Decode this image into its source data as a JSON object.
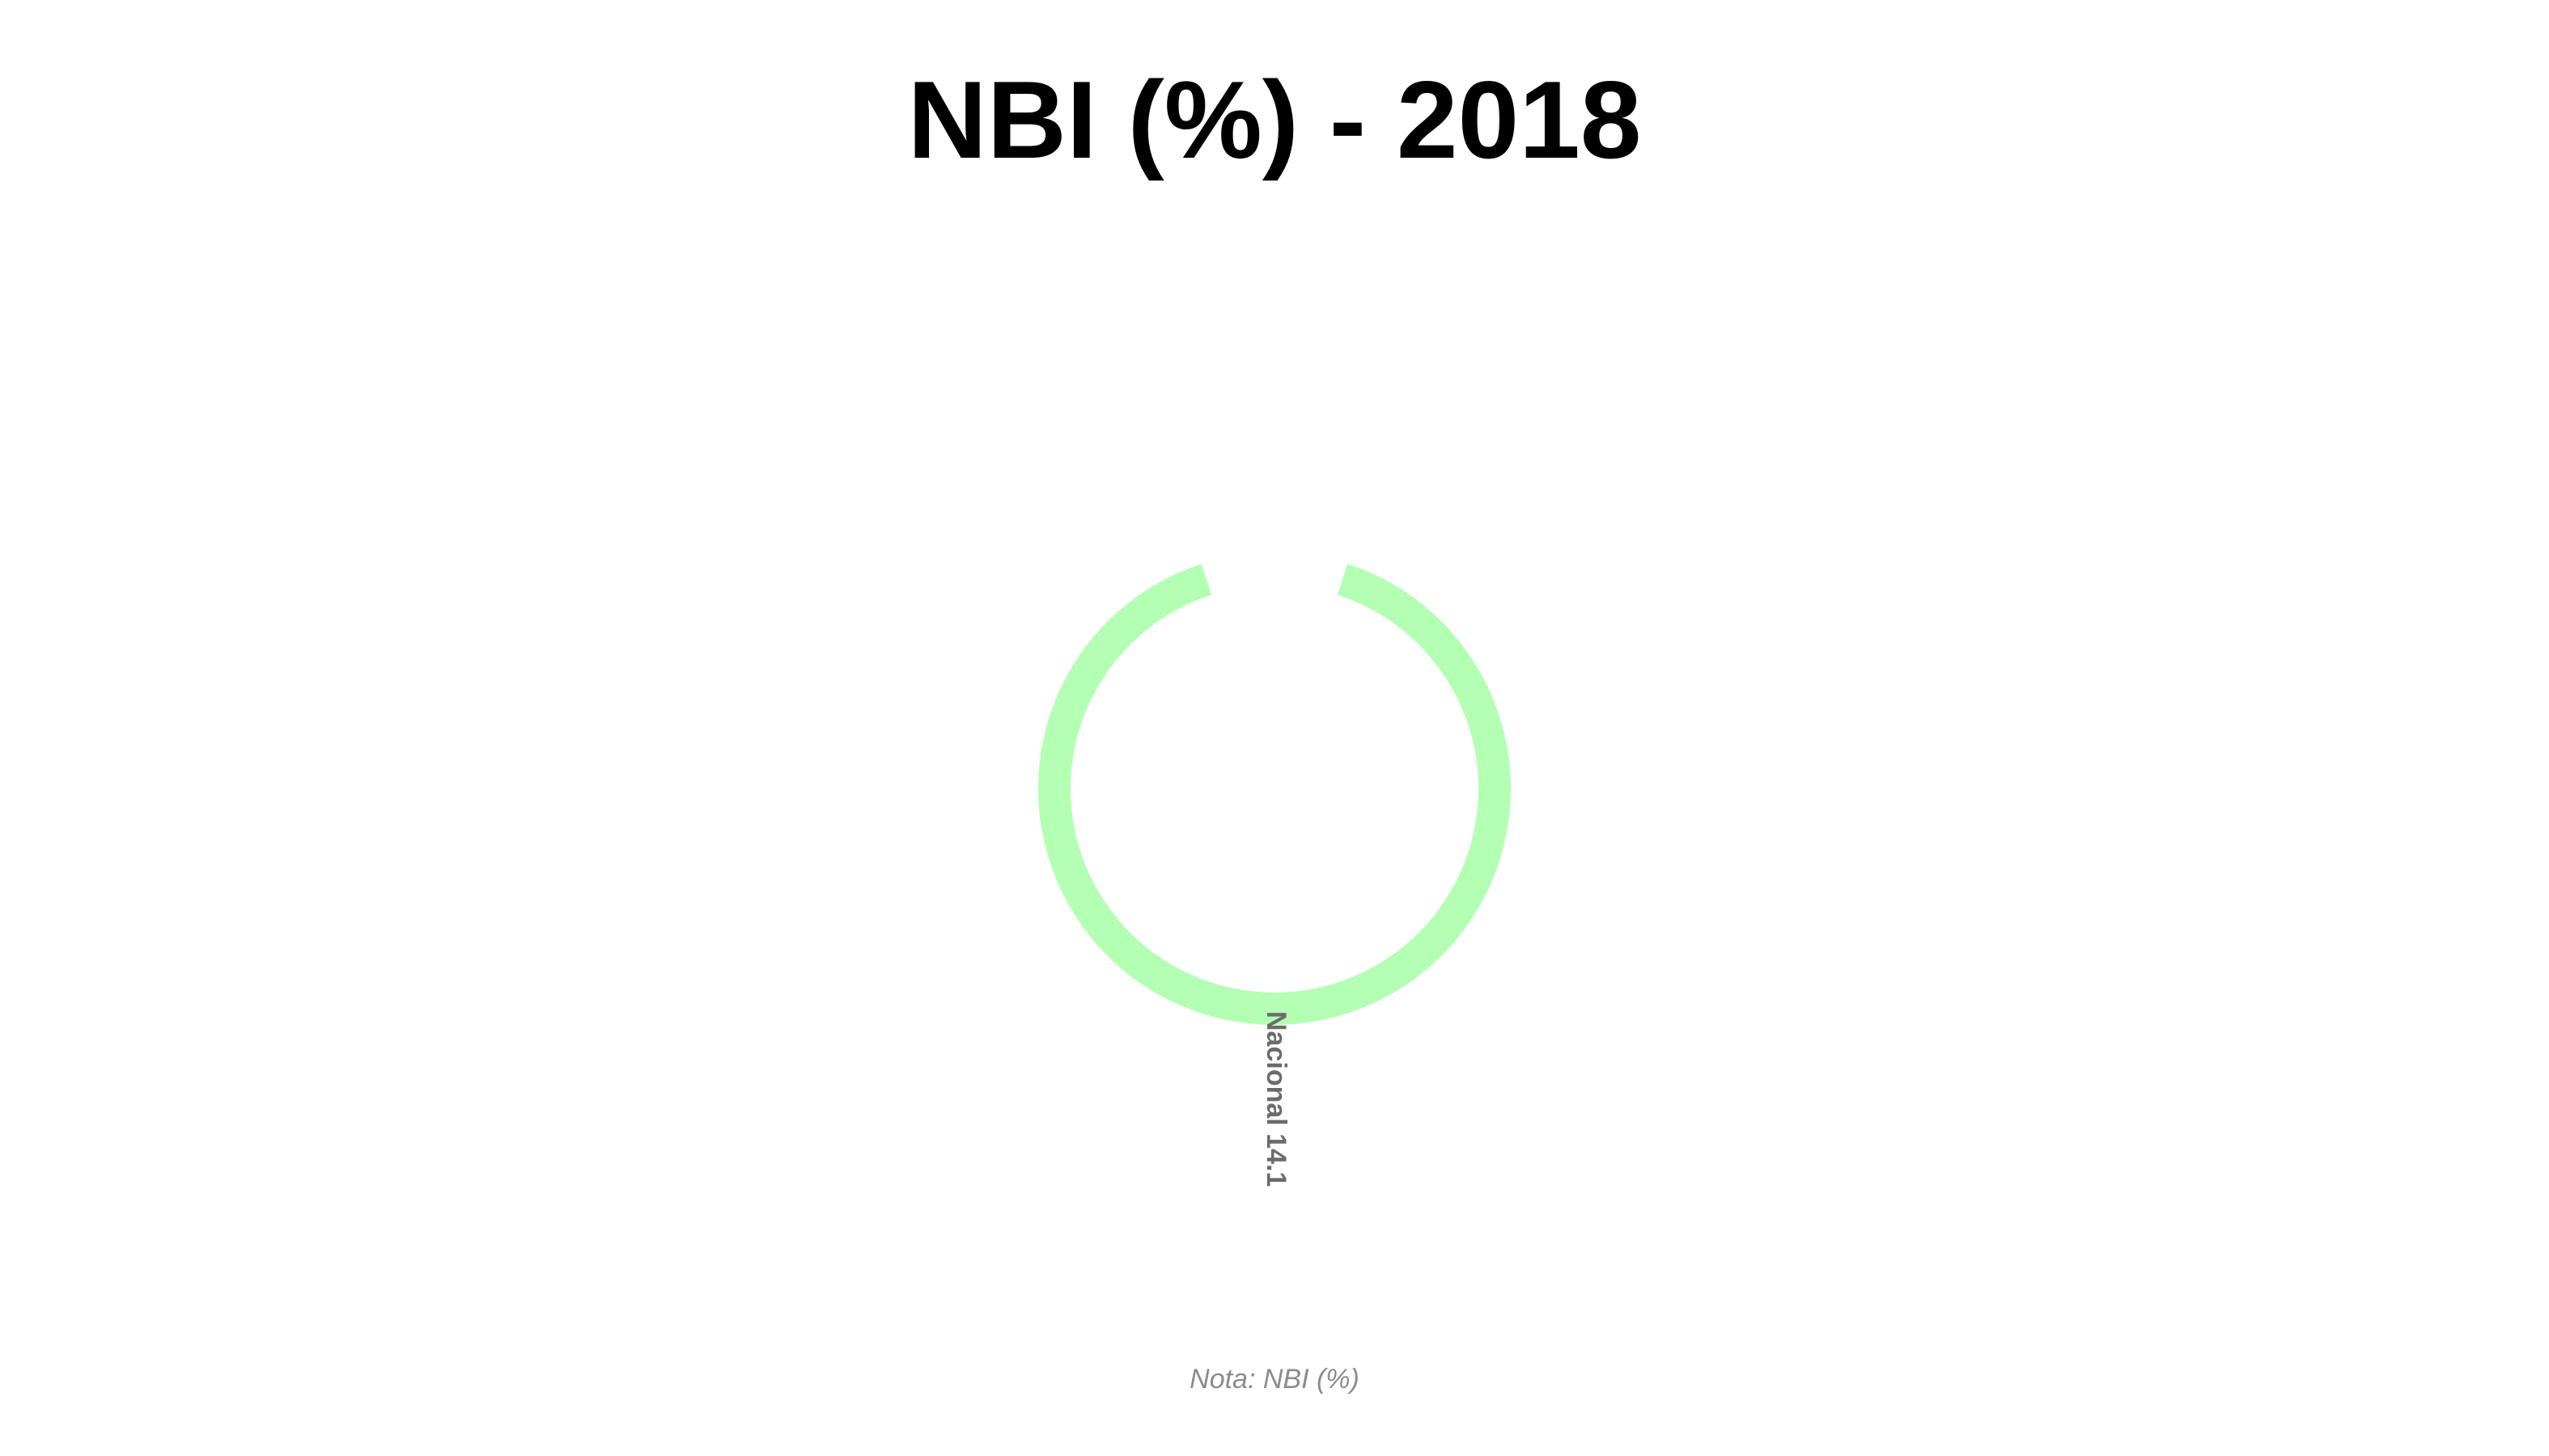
{
  "chart_data": {
    "type": "pie",
    "title": "NBI (%) - 2018",
    "categories": [
      "Nacional"
    ],
    "values": [
      14.1
    ],
    "slice_labels": [
      "Nacional 14.1"
    ],
    "colors": [
      "#b3ffb3"
    ],
    "note": "Nota: NBI (%)"
  }
}
